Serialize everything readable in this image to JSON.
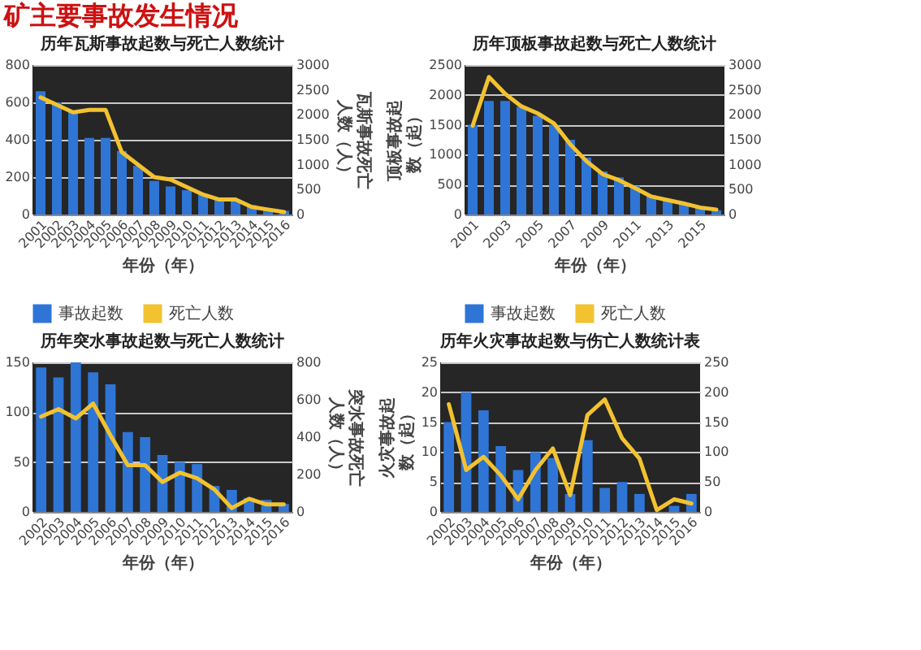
{
  "chart_data": [
    {
      "type": "other",
      "title": "矿主要事故发生情况"
    },
    {
      "type": "bar",
      "title": "历年瓦斯事故起数与死亡人数统计",
      "xlabel": "年份（年）",
      "y2label": "瓦斯事故死亡人数（人）",
      "categories": [
        "2001",
        "2002",
        "2003",
        "2004",
        "2005",
        "2006",
        "2007",
        "2008",
        "2009",
        "2010",
        "2011",
        "2012",
        "2013",
        "2014",
        "2015",
        "2016"
      ],
      "series": [
        {
          "name": "事故起数",
          "type": "bar",
          "color": "#2e75d6",
          "values": [
            660,
            600,
            550,
            410,
            410,
            340,
            260,
            180,
            150,
            130,
            110,
            80,
            70,
            50,
            30,
            20
          ]
        },
        {
          "name": "死亡人数",
          "type": "line",
          "axis": "y2",
          "color": "#f2c230",
          "values": [
            2350,
            2200,
            2050,
            2100,
            2100,
            1250,
            1000,
            750,
            700,
            550,
            400,
            300,
            300,
            150,
            100,
            50
          ]
        }
      ],
      "ylim": [
        0,
        800
      ],
      "yticks": [
        0,
        200,
        400,
        600,
        800
      ],
      "y2lim": [
        0,
        3000
      ],
      "y2ticks": [
        0,
        500,
        1000,
        1500,
        2000,
        2500,
        3000
      ],
      "grid": "y",
      "legend": "bottom"
    },
    {
      "type": "bar",
      "title": "历年顶板事故起数与死亡人数统计",
      "xlabel": "年份（年）",
      "ylabel": "顶板事故起数（起）",
      "categories": [
        "2001",
        null,
        "2003",
        null,
        "2005",
        null,
        "2007",
        null,
        "2009",
        null,
        "2011",
        null,
        "2013",
        null,
        "2015",
        null
      ],
      "series": [
        {
          "name": "事故起数",
          "type": "bar",
          "color": "#2e75d6",
          "values": [
            1500,
            1900,
            1900,
            1800,
            1650,
            1500,
            1250,
            950,
            720,
            620,
            480,
            320,
            230,
            180,
            110,
            70
          ]
        },
        {
          "name": "死亡人数",
          "type": "line",
          "axis": "y2",
          "color": "#f2c230",
          "values": [
            1780,
            2760,
            2420,
            2170,
            2030,
            1830,
            1410,
            1070,
            810,
            690,
            530,
            360,
            290,
            220,
            140,
            100
          ]
        }
      ],
      "ylim": [
        0,
        2500
      ],
      "yticks": [
        0,
        500,
        1000,
        1500,
        2000,
        2500
      ],
      "y2lim": [
        0,
        3000
      ],
      "y2ticks": [
        0,
        500,
        1000,
        1500,
        2000,
        2500,
        3000
      ],
      "grid": "y",
      "legend": "bottom"
    },
    {
      "type": "bar",
      "title": "历年突水事故起数与死亡人数统计",
      "xlabel": "年份（年）",
      "y2label": "突水事故死亡人数（人）",
      "categories": [
        "2002",
        "2003",
        "2004",
        "2005",
        "2006",
        "2007",
        "2008",
        "2009",
        "2010",
        "2011",
        "2012",
        "2013",
        "2014",
        "2015",
        "2016"
      ],
      "series": [
        {
          "type": "bar",
          "color": "#2e75d6",
          "values": [
            145,
            135,
            150,
            140,
            128,
            80,
            75,
            57,
            50,
            48,
            26,
            22,
            14,
            12,
            8
          ]
        },
        {
          "type": "line",
          "axis": "y2",
          "color": "#f2c230",
          "values": [
            510,
            550,
            500,
            580,
            410,
            250,
            250,
            160,
            210,
            180,
            120,
            20,
            70,
            40,
            40
          ]
        }
      ],
      "ylim": [
        0,
        150
      ],
      "yticks": [
        0,
        50,
        100,
        150
      ],
      "y2lim": [
        0,
        800
      ],
      "y2ticks": [
        0,
        200,
        400,
        600,
        800
      ],
      "grid": "y"
    },
    {
      "type": "bar",
      "title": "历年火灾事故起数与伤亡人数统计表",
      "xlabel": "年份（年）",
      "ylabel": "火灾事故起数（起）",
      "categories": [
        "2002",
        "2003",
        "2004",
        "2005",
        "2006",
        "2007",
        "2008",
        "2009",
        "2010",
        "2011",
        "2012",
        "2013",
        "2014",
        "2015",
        "2016"
      ],
      "series": [
        {
          "type": "bar",
          "color": "#2e75d6",
          "values": [
            15,
            20,
            17,
            11,
            7,
            10,
            9,
            3,
            12,
            4,
            5,
            3,
            0,
            1,
            3
          ]
        },
        {
          "type": "line",
          "axis": "y2",
          "color": "#f2c230",
          "values": [
            180,
            70,
            92,
            61,
            21,
            70,
            106,
            28,
            162,
            188,
            123,
            89,
            3,
            21,
            14
          ]
        }
      ],
      "ylim": [
        0,
        25
      ],
      "yticks": [
        0,
        5,
        10,
        15,
        20,
        25
      ],
      "y2lim": [
        0,
        250
      ],
      "y2ticks": [
        0,
        50,
        100,
        150,
        200,
        250
      ],
      "grid": "y"
    }
  ]
}
